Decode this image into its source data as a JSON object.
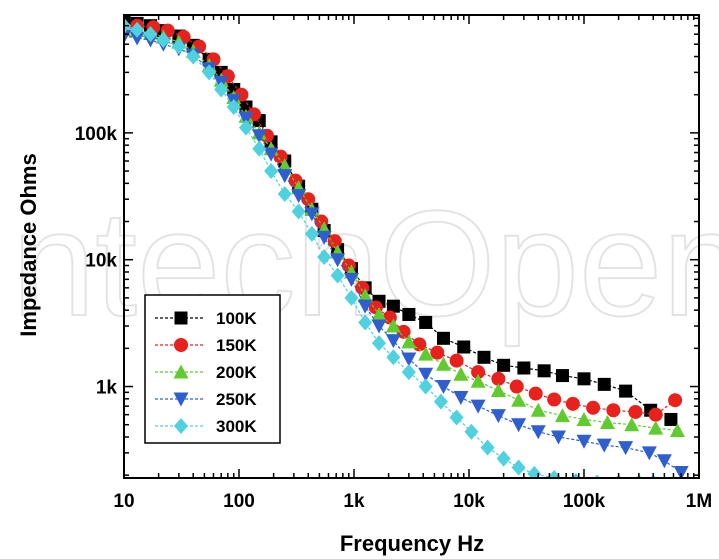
{
  "watermark": "IntechOpen",
  "chart_data": {
    "type": "scatter",
    "xlabel": "Frequency Hz",
    "ylabel": "Impedance Ohms",
    "x_scale": "log",
    "y_scale": "log",
    "xlim": [
      10,
      1000000
    ],
    "ylim": [
      190,
      850000
    ],
    "x_ticks": [
      {
        "value": 10,
        "label": "10"
      },
      {
        "value": 100,
        "label": "100"
      },
      {
        "value": 1000,
        "label": "1k"
      },
      {
        "value": 10000,
        "label": "10k"
      },
      {
        "value": 100000,
        "label": "100k"
      },
      {
        "value": 1000000,
        "label": "1M"
      }
    ],
    "y_ticks": [
      {
        "value": 1000,
        "label": "1k"
      },
      {
        "value": 10000,
        "label": "10k"
      },
      {
        "value": 100000,
        "label": "100k"
      }
    ],
    "grid": false,
    "legend_position": "bottom-left",
    "series": [
      {
        "name": "100K",
        "color": "#000000",
        "marker": "square",
        "points": [
          [
            10,
            750000
          ],
          [
            13,
            730000
          ],
          [
            17,
            700000
          ],
          [
            22,
            640000
          ],
          [
            30,
            580000
          ],
          [
            40,
            490000
          ],
          [
            55,
            380000
          ],
          [
            70,
            300000
          ],
          [
            90,
            220000
          ],
          [
            115,
            160000
          ],
          [
            150,
            125000
          ],
          [
            190,
            85000
          ],
          [
            250,
            60000
          ],
          [
            330,
            38000
          ],
          [
            430,
            25000
          ],
          [
            550,
            17000
          ],
          [
            720,
            12000
          ],
          [
            950,
            8500
          ],
          [
            1250,
            6000
          ],
          [
            1650,
            4700
          ],
          [
            2200,
            4300
          ],
          [
            3000,
            3700
          ],
          [
            4200,
            3200
          ],
          [
            6000,
            2400
          ],
          [
            9000,
            2050
          ],
          [
            13500,
            1700
          ],
          [
            20000,
            1470
          ],
          [
            30000,
            1400
          ],
          [
            45000,
            1330
          ],
          [
            65000,
            1220
          ],
          [
            100000,
            1150
          ],
          [
            150000,
            1040
          ],
          [
            230000,
            920
          ],
          [
            380000,
            650
          ],
          [
            570000,
            550
          ]
        ]
      },
      {
        "name": "150K",
        "color": "#e8211d",
        "marker": "circle",
        "points": [
          [
            13,
            700000
          ],
          [
            18,
            680000
          ],
          [
            24,
            640000
          ],
          [
            33,
            570000
          ],
          [
            45,
            480000
          ],
          [
            60,
            380000
          ],
          [
            80,
            280000
          ],
          [
            105,
            200000
          ],
          [
            135,
            140000
          ],
          [
            175,
            95000
          ],
          [
            230,
            65000
          ],
          [
            310,
            42000
          ],
          [
            400,
            30000
          ],
          [
            520,
            20000
          ],
          [
            680,
            14000
          ],
          [
            900,
            9000
          ],
          [
            1180,
            6000
          ],
          [
            1550,
            4200
          ],
          [
            2050,
            3500
          ],
          [
            2700,
            2700
          ],
          [
            3700,
            2150
          ],
          [
            5300,
            1850
          ],
          [
            7800,
            1600
          ],
          [
            12000,
            1300
          ],
          [
            18000,
            1150
          ],
          [
            26000,
            1000
          ],
          [
            38000,
            880
          ],
          [
            55000,
            790
          ],
          [
            80000,
            730
          ],
          [
            120000,
            680
          ],
          [
            180000,
            650
          ],
          [
            280000,
            630
          ],
          [
            420000,
            600
          ],
          [
            620000,
            780
          ]
        ]
      },
      {
        "name": "200K",
        "color": "#5fcb2e",
        "marker": "triangle-up",
        "points": [
          [
            10,
            650000
          ],
          [
            13,
            640000
          ],
          [
            17,
            610000
          ],
          [
            22,
            570000
          ],
          [
            30,
            520000
          ],
          [
            40,
            440000
          ],
          [
            55,
            340000
          ],
          [
            70,
            260000
          ],
          [
            90,
            190000
          ],
          [
            115,
            135000
          ],
          [
            150,
            100000
          ],
          [
            190,
            75000
          ],
          [
            250,
            55000
          ],
          [
            330,
            37000
          ],
          [
            430,
            25000
          ],
          [
            550,
            17500
          ],
          [
            720,
            11500
          ],
          [
            950,
            8000
          ],
          [
            1250,
            5200
          ],
          [
            1650,
            3700
          ],
          [
            2200,
            3000
          ],
          [
            3000,
            2250
          ],
          [
            4200,
            1800
          ],
          [
            6000,
            1500
          ],
          [
            8500,
            1250
          ],
          [
            12000,
            1100
          ],
          [
            18000,
            930
          ],
          [
            27000,
            780
          ],
          [
            40000,
            650
          ],
          [
            65000,
            590
          ],
          [
            100000,
            550
          ],
          [
            160000,
            520
          ],
          [
            260000,
            500
          ],
          [
            420000,
            470
          ],
          [
            650000,
            450
          ]
        ]
      },
      {
        "name": "250K",
        "color": "#2f5fcf",
        "marker": "triangle-down",
        "points": [
          [
            10,
            580000
          ],
          [
            13,
            560000
          ],
          [
            17,
            540000
          ],
          [
            22,
            500000
          ],
          [
            30,
            460000
          ],
          [
            40,
            410000
          ],
          [
            55,
            320000
          ],
          [
            70,
            250000
          ],
          [
            90,
            180000
          ],
          [
            115,
            130000
          ],
          [
            150,
            95000
          ],
          [
            190,
            68000
          ],
          [
            250,
            46000
          ],
          [
            330,
            32000
          ],
          [
            430,
            23000
          ],
          [
            550,
            15000
          ],
          [
            720,
            10000
          ],
          [
            950,
            7000
          ],
          [
            1250,
            4300
          ],
          [
            1650,
            3000
          ],
          [
            2200,
            2300
          ],
          [
            3000,
            1650
          ],
          [
            4200,
            1250
          ],
          [
            6000,
            1000
          ],
          [
            8500,
            820
          ],
          [
            12000,
            700
          ],
          [
            18000,
            590
          ],
          [
            27000,
            500
          ],
          [
            40000,
            440
          ],
          [
            60000,
            400
          ],
          [
            100000,
            370
          ],
          [
            150000,
            345
          ],
          [
            230000,
            330
          ],
          [
            370000,
            300
          ],
          [
            500000,
            260
          ],
          [
            700000,
            210
          ]
        ]
      },
      {
        "name": "300K",
        "color": "#4fd1df",
        "marker": "diamond",
        "points": [
          [
            10,
            700000
          ],
          [
            13,
            650000
          ],
          [
            17,
            600000
          ],
          [
            22,
            540000
          ],
          [
            30,
            480000
          ],
          [
            40,
            400000
          ],
          [
            55,
            300000
          ],
          [
            70,
            220000
          ],
          [
            90,
            160000
          ],
          [
            115,
            110000
          ],
          [
            150,
            75000
          ],
          [
            190,
            50000
          ],
          [
            250,
            33000
          ],
          [
            330,
            24000
          ],
          [
            430,
            16000
          ],
          [
            550,
            10500
          ],
          [
            720,
            7500
          ],
          [
            950,
            5000
          ],
          [
            1250,
            3200
          ],
          [
            1650,
            2200
          ],
          [
            2200,
            1700
          ],
          [
            3000,
            1300
          ],
          [
            4200,
            1000
          ],
          [
            5700,
            760
          ],
          [
            7800,
            570
          ],
          [
            10500,
            440
          ],
          [
            14500,
            330
          ],
          [
            20000,
            270
          ],
          [
            27000,
            230
          ],
          [
            37000,
            205
          ],
          [
            55000,
            190
          ],
          [
            85000,
            180
          ],
          [
            130000,
            175
          ],
          [
            200000,
            175
          ],
          [
            300000,
            175
          ],
          [
            400000,
            175
          ]
        ]
      }
    ]
  }
}
